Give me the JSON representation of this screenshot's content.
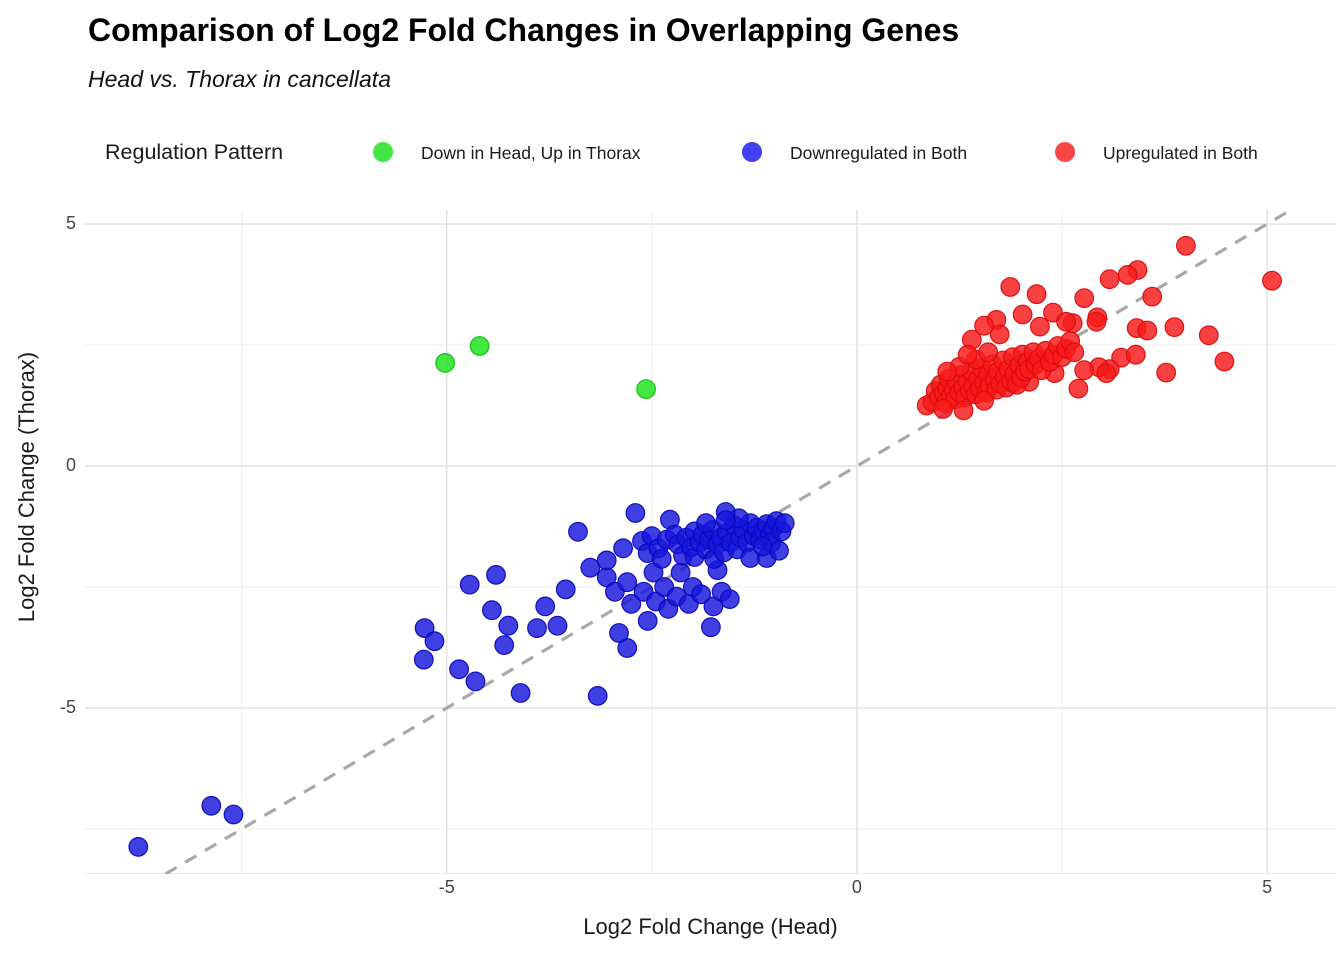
{
  "header": {
    "title": "Comparison of Log2 Fold Changes in Overlapping Genes",
    "subtitle": "Head vs. Thorax in cancellata"
  },
  "legend": {
    "title": "Regulation Pattern",
    "items": [
      {
        "label": "Down in Head, Up in Thorax",
        "color": "#44e544"
      },
      {
        "label": "Downregulated in Both",
        "color": "#4040ee"
      },
      {
        "label": "Upregulated in Both",
        "color": "#f94646"
      }
    ]
  },
  "axes": {
    "x": {
      "label": "Log2 Fold Change (Head)",
      "major_ticks": [
        -5,
        0,
        5
      ],
      "minor_ticks": [
        -7.5,
        -2.5,
        2.5
      ]
    },
    "y": {
      "label": "Log2 Fold Change (Thorax)",
      "major_ticks": [
        -5,
        0,
        5
      ],
      "minor_ticks": [
        -7.5,
        -2.5,
        2.5
      ]
    }
  },
  "colors": {
    "grid_major": "#e3e3e3",
    "grid_minor": "#f1f1f1",
    "identity_line": "#a8a8a8",
    "panel_edge": "#ececec",
    "tick_stub": "#d4d4d4"
  },
  "chart_data": {
    "type": "scatter",
    "title": "Comparison of Log2 Fold Changes in Overlapping Genes",
    "subtitle": "Head vs. Thorax in cancellata",
    "xlabel": "Log2 Fold Change (Head)",
    "ylabel": "Log2 Fold Change (Thorax)",
    "xlim": [
      -9.41,
      5.84
    ],
    "ylim": [
      -8.43,
      5.29
    ],
    "grid": true,
    "legend_position": "top",
    "identity_line": {
      "style": "dashed",
      "slope": 1,
      "intercept": 0
    },
    "series": [
      {
        "name": "Down in Head, Up in Thorax",
        "fill": "rgba(34,226,34,0.85)",
        "stroke": "rgba(20,190,20,0.95)",
        "points": [
          [
            -5.02,
            2.13
          ],
          [
            -4.6,
            2.48
          ],
          [
            -2.57,
            1.59
          ]
        ]
      },
      {
        "name": "Downregulated in Both",
        "fill": "rgba(22,22,220,0.82)",
        "stroke": "rgba(10,10,185,0.95)",
        "points": [
          [
            -8.76,
            -7.87
          ],
          [
            -7.87,
            -7.02
          ],
          [
            -7.6,
            -7.2
          ],
          [
            -5.27,
            -3.35
          ],
          [
            -5.15,
            -3.62
          ],
          [
            -5.28,
            -4.0
          ],
          [
            -4.85,
            -4.2
          ],
          [
            -4.65,
            -4.45
          ],
          [
            -4.72,
            -2.45
          ],
          [
            -4.4,
            -2.25
          ],
          [
            -4.45,
            -2.98
          ],
          [
            -4.25,
            -3.3
          ],
          [
            -4.3,
            -3.7
          ],
          [
            -4.1,
            -4.69
          ],
          [
            -3.9,
            -3.35
          ],
          [
            -3.8,
            -2.9
          ],
          [
            -3.16,
            -4.75
          ],
          [
            -3.65,
            -3.3
          ],
          [
            -3.55,
            -2.55
          ],
          [
            -3.4,
            -1.36
          ],
          [
            -3.25,
            -2.1
          ],
          [
            -3.05,
            -2.3
          ],
          [
            -3.05,
            -1.95
          ],
          [
            -2.95,
            -2.6
          ],
          [
            -2.85,
            -1.7
          ],
          [
            -2.8,
            -2.4
          ],
          [
            -2.75,
            -2.85
          ],
          [
            -2.8,
            -3.76
          ],
          [
            -2.9,
            -3.45
          ],
          [
            -2.55,
            -3.2
          ],
          [
            -2.6,
            -2.6
          ],
          [
            -2.48,
            -2.2
          ],
          [
            -2.45,
            -2.8
          ],
          [
            -2.3,
            -2.95
          ],
          [
            -2.35,
            -2.5
          ],
          [
            -2.2,
            -2.7
          ],
          [
            -2.15,
            -2.2
          ],
          [
            -2.05,
            -2.85
          ],
          [
            -2.0,
            -2.5
          ],
          [
            -1.9,
            -2.65
          ],
          [
            -1.78,
            -3.33
          ],
          [
            -1.75,
            -2.9
          ],
          [
            -1.7,
            -2.15
          ],
          [
            -1.65,
            -2.6
          ],
          [
            -1.55,
            -2.75
          ],
          [
            -2.7,
            -0.97
          ],
          [
            -2.62,
            -1.55
          ],
          [
            -2.55,
            -1.8
          ],
          [
            -2.5,
            -1.45
          ],
          [
            -2.42,
            -1.7
          ],
          [
            -2.38,
            -1.92
          ],
          [
            -2.32,
            -1.52
          ],
          [
            -2.28,
            -1.11
          ],
          [
            -2.22,
            -1.42
          ],
          [
            -2.18,
            -1.62
          ],
          [
            -2.12,
            -1.85
          ],
          [
            -2.08,
            -1.48
          ],
          [
            -2.02,
            -1.68
          ],
          [
            -1.98,
            -1.35
          ],
          [
            -1.98,
            -1.88
          ],
          [
            -1.92,
            -1.58
          ],
          [
            -1.88,
            -1.42
          ],
          [
            -1.84,
            -1.72
          ],
          [
            -1.8,
            -1.52
          ],
          [
            -1.76,
            -1.32
          ],
          [
            -1.74,
            -1.92
          ],
          [
            -1.7,
            -1.62
          ],
          [
            -1.66,
            -1.48
          ],
          [
            -1.62,
            -1.78
          ],
          [
            -1.58,
            -1.38
          ],
          [
            -1.54,
            -1.58
          ],
          [
            -1.5,
            -1.22
          ],
          [
            -1.46,
            -1.72
          ],
          [
            -1.42,
            -1.48
          ],
          [
            -1.38,
            -1.32
          ],
          [
            -1.34,
            -1.58
          ],
          [
            -1.3,
            -1.18
          ],
          [
            -1.3,
            -1.9
          ],
          [
            -1.26,
            -1.44
          ],
          [
            -1.22,
            -1.28
          ],
          [
            -1.18,
            -1.52
          ],
          [
            -1.14,
            -1.34
          ],
          [
            -1.1,
            -1.2
          ],
          [
            -1.1,
            -1.9
          ],
          [
            -1.06,
            -1.44
          ],
          [
            -1.02,
            -1.28
          ],
          [
            -0.98,
            -1.14
          ],
          [
            -1.04,
            -1.58
          ],
          [
            -0.95,
            -1.75
          ],
          [
            -1.44,
            -1.08
          ],
          [
            -1.84,
            -1.18
          ],
          [
            -1.6,
            -0.95
          ],
          [
            -1.6,
            -1.12
          ],
          [
            -1.15,
            -1.66
          ],
          [
            -0.92,
            -1.35
          ],
          [
            -0.88,
            -1.18
          ]
        ]
      },
      {
        "name": "Upregulated in Both",
        "fill": "rgba(248,27,27,0.83)",
        "stroke": "rgba(218,12,12,0.95)",
        "points": [
          [
            4.01,
            4.55
          ],
          [
            5.06,
            3.83
          ],
          [
            3.42,
            4.05
          ],
          [
            3.3,
            3.95
          ],
          [
            3.08,
            3.86
          ],
          [
            3.6,
            3.5
          ],
          [
            1.87,
            3.7
          ],
          [
            2.19,
            3.55
          ],
          [
            2.77,
            3.47
          ],
          [
            2.39,
            3.17
          ],
          [
            2.02,
            3.13
          ],
          [
            2.93,
            3.07
          ],
          [
            1.7,
            3.02
          ],
          [
            2.63,
            2.95
          ],
          [
            2.92,
            2.98
          ],
          [
            3.41,
            2.85
          ],
          [
            3.54,
            2.8
          ],
          [
            3.87,
            2.87
          ],
          [
            4.29,
            2.7
          ],
          [
            4.48,
            2.16
          ],
          [
            3.22,
            2.24
          ],
          [
            3.4,
            2.3
          ],
          [
            3.08,
            2.0
          ],
          [
            2.95,
            2.04
          ],
          [
            3.77,
            1.93
          ],
          [
            2.23,
            2.88
          ],
          [
            1.4,
            2.61
          ],
          [
            1.74,
            2.72
          ],
          [
            1.55,
            2.9
          ],
          [
            2.55,
            2.98
          ],
          [
            2.1,
            1.74
          ],
          [
            1.9,
            1.71
          ],
          [
            2.41,
            1.92
          ],
          [
            2.77,
            1.98
          ],
          [
            3.04,
            1.92
          ],
          [
            2.7,
            1.6
          ],
          [
            0.85,
            1.25
          ],
          [
            0.92,
            1.32
          ],
          [
            0.96,
            1.55
          ],
          [
            1.0,
            1.42
          ],
          [
            1.02,
            1.68
          ],
          [
            1.06,
            1.5
          ],
          [
            1.08,
            1.3
          ],
          [
            1.1,
            1.62
          ],
          [
            1.12,
            1.8
          ],
          [
            1.15,
            1.45
          ],
          [
            1.18,
            1.58
          ],
          [
            1.2,
            1.38
          ],
          [
            1.22,
            1.72
          ],
          [
            1.25,
            1.52
          ],
          [
            1.28,
            1.88
          ],
          [
            1.3,
            1.62
          ],
          [
            1.32,
            1.42
          ],
          [
            1.35,
            1.75
          ],
          [
            1.38,
            1.55
          ],
          [
            1.4,
            1.95
          ],
          [
            1.42,
            1.65
          ],
          [
            1.45,
            1.48
          ],
          [
            1.48,
            1.8
          ],
          [
            1.5,
            1.6
          ],
          [
            1.52,
            2.02
          ],
          [
            1.55,
            1.72
          ],
          [
            1.58,
            1.52
          ],
          [
            1.6,
            1.88
          ],
          [
            1.62,
            1.65
          ],
          [
            1.65,
            2.1
          ],
          [
            1.68,
            1.78
          ],
          [
            1.7,
            1.58
          ],
          [
            1.72,
            1.95
          ],
          [
            1.75,
            1.7
          ],
          [
            1.78,
            2.18
          ],
          [
            1.8,
            1.85
          ],
          [
            1.82,
            1.62
          ],
          [
            1.85,
            2.0
          ],
          [
            1.88,
            1.75
          ],
          [
            1.9,
            2.25
          ],
          [
            1.92,
            1.9
          ],
          [
            1.95,
            1.68
          ],
          [
            1.98,
            2.08
          ],
          [
            2.0,
            1.82
          ],
          [
            2.02,
            2.3
          ],
          [
            2.05,
            1.95
          ],
          [
            2.08,
            2.15
          ],
          [
            2.1,
            2.0
          ],
          [
            2.15,
            2.35
          ],
          [
            2.18,
            2.1
          ],
          [
            2.22,
            2.22
          ],
          [
            2.25,
            1.98
          ],
          [
            2.3,
            2.38
          ],
          [
            2.35,
            2.15
          ],
          [
            2.4,
            2.3
          ],
          [
            2.45,
            2.48
          ],
          [
            2.5,
            2.25
          ],
          [
            2.55,
            2.42
          ],
          [
            2.6,
            2.58
          ],
          [
            2.65,
            2.35
          ],
          [
            1.25,
            2.05
          ],
          [
            1.45,
            2.2
          ],
          [
            1.1,
            1.95
          ],
          [
            1.6,
            2.35
          ],
          [
            1.35,
            2.3
          ],
          [
            1.3,
            1.15
          ],
          [
            1.55,
            1.35
          ],
          [
            1.05,
            1.18
          ]
        ]
      }
    ]
  }
}
